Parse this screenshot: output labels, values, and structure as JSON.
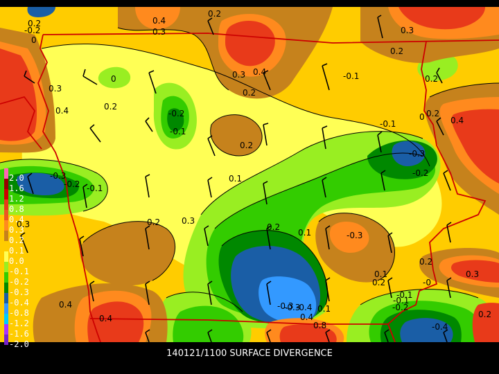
{
  "caption": "140121/1100 SURFACE DIVERGENCE",
  "legend": [
    {
      "label": "2.0",
      "color": "#ff66b2"
    },
    {
      "label": "1.6",
      "color": "#990000"
    },
    {
      "label": "1.2",
      "color": "#cc0000"
    },
    {
      "label": "0.8",
      "color": "#e83a1a"
    },
    {
      "label": "0.4",
      "color": "#ee5522"
    },
    {
      "label": "0.3",
      "color": "#ff8a1e"
    },
    {
      "label": "0.2",
      "color": "#c6821c"
    },
    {
      "label": "0.1",
      "color": "#ffcc00"
    },
    {
      "label": "0.0",
      "color": "#ffff55"
    },
    {
      "label": "-0.1",
      "color": "#99ee22"
    },
    {
      "label": "-0.2",
      "color": "#33cc00"
    },
    {
      "label": "-0.3",
      "color": "#008800"
    },
    {
      "label": "-0.4",
      "color": "#1a5ea6"
    },
    {
      "label": "-0.8",
      "color": "#3399ff"
    },
    {
      "label": "-1.2",
      "color": "#00ccff"
    },
    {
      "label": "-1.6",
      "color": "#aa33ff"
    },
    {
      "label": "-2.0",
      "color": "#7722cc"
    }
  ],
  "contour_labels": [
    "0.2",
    "0.4",
    "0.3",
    "0.2",
    "-0.2",
    "0",
    "0.3",
    "0.4",
    "0.3",
    "0.2",
    "-0.1",
    "0",
    "0.2",
    "0.3",
    "0.4",
    "0.2",
    "-0.2",
    "-0.1",
    "0.2",
    "0.2",
    "-0.1",
    "-0.3",
    "0.2",
    "0.4",
    "-0.3",
    "-0.2",
    "-0.1",
    "0.1",
    "-0.2",
    "0",
    "0.2",
    "0.3",
    "0.2",
    "-0.3",
    "0.1",
    "0.3",
    "0.2",
    "0.1",
    "0.2",
    "0.3",
    "-0.1",
    "0.2",
    "-0",
    "-0.1",
    "-0.2",
    "-0.3",
    "-0.4",
    "0.4",
    "0.4",
    "0.8",
    "-0.4",
    "0.1",
    "0.4",
    "-0.3"
  ]
}
